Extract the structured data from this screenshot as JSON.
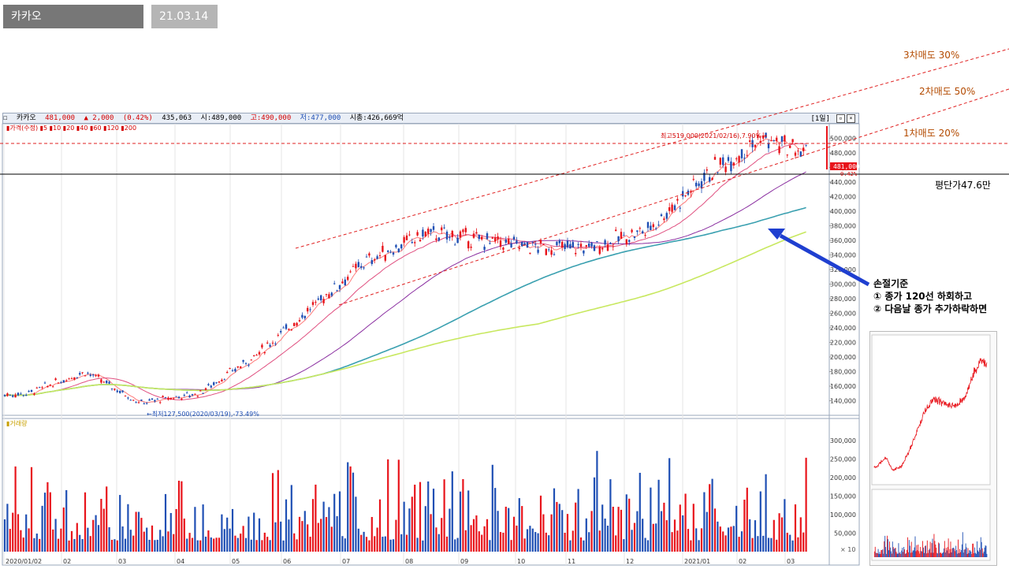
{
  "tabs": {
    "stock": "카카오",
    "date": "21.03.14일"
  },
  "header": {
    "name": "카카오",
    "price": "481,000",
    "change": "▲ 2,000",
    "change_pct": "(0.42%)",
    "volume": "435,063",
    "open": "시:489,000",
    "high": "고:490,000",
    "low": "저:477,000",
    "cap": "시총:426,669억",
    "period_btn": "[1일]"
  },
  "price_legend": "▮가격(수정) ▮5 ▮10 ▮20 ▮40 ▮60 ▮120 ▮200",
  "volume_legend": "▮거래량",
  "annotations": {
    "sell3": "3차매도 30%",
    "sell2": "2차매도 50%",
    "sell1": "1차매도 20%",
    "avg": "평단가47.6만",
    "high_label": "최고519,000(2021/02/16),7.90%→",
    "low_label": "←최저127,500(2020/03/19),-73.49%",
    "stoploss_title": "손절기준",
    "stoploss_1": "① 종가 120선 하회하고",
    "stoploss_2": "② 다음날 종가 추가하락하면",
    "price_tag": "481,000",
    "price_tag_pct": "0.42%"
  },
  "colors": {
    "up": "#e8141b",
    "down": "#1f4fb4",
    "annotation": "#b34a00",
    "dashed": "#e02020",
    "arrow": "#1f3fd0"
  },
  "chart_data": [
    {
      "type": "candlestick",
      "title": "카카오",
      "x_ticks": [
        "2020/01/02",
        "02",
        "03",
        "04",
        "05",
        "06",
        "07",
        "08",
        "09",
        "10",
        "11",
        "12",
        "2021/01",
        "02",
        "03"
      ],
      "y_ticks": [
        140000,
        160000,
        180000,
        200000,
        220000,
        240000,
        260000,
        280000,
        300000,
        320000,
        340000,
        360000,
        380000,
        400000,
        420000,
        440000,
        460000,
        480000,
        500000
      ],
      "ylim": [
        120000,
        520000
      ],
      "close_approx": [
        {
          "x": "2020/01",
          "y": 150000
        },
        {
          "x": "2020/02",
          "y": 180000
        },
        {
          "x": "2020/03",
          "y": 137000
        },
        {
          "x": "2020/04",
          "y": 150000
        },
        {
          "x": "2020/05",
          "y": 200000
        },
        {
          "x": "2020/06",
          "y": 260000
        },
        {
          "x": "2020/07",
          "y": 330000
        },
        {
          "x": "2020/08",
          "y": 370000
        },
        {
          "x": "2020/09",
          "y": 360000
        },
        {
          "x": "2020/10",
          "y": 350000
        },
        {
          "x": "2020/11",
          "y": 350000
        },
        {
          "x": "2020/12",
          "y": 375000
        },
        {
          "x": "2021/01",
          "y": 450000
        },
        {
          "x": "2021/02",
          "y": 500000
        },
        {
          "x": "2021/03",
          "y": 481000
        }
      ],
      "max": {
        "value": 519000,
        "date": "2021/02/16"
      },
      "min": {
        "value": 127500,
        "date": "2020/03/19"
      }
    },
    {
      "type": "bar",
      "title": "거래량",
      "y_ticks": [
        50000,
        100000,
        150000,
        200000,
        250000,
        300000
      ],
      "unit_label": "× 10",
      "ylim": [
        0,
        340000
      ]
    }
  ]
}
